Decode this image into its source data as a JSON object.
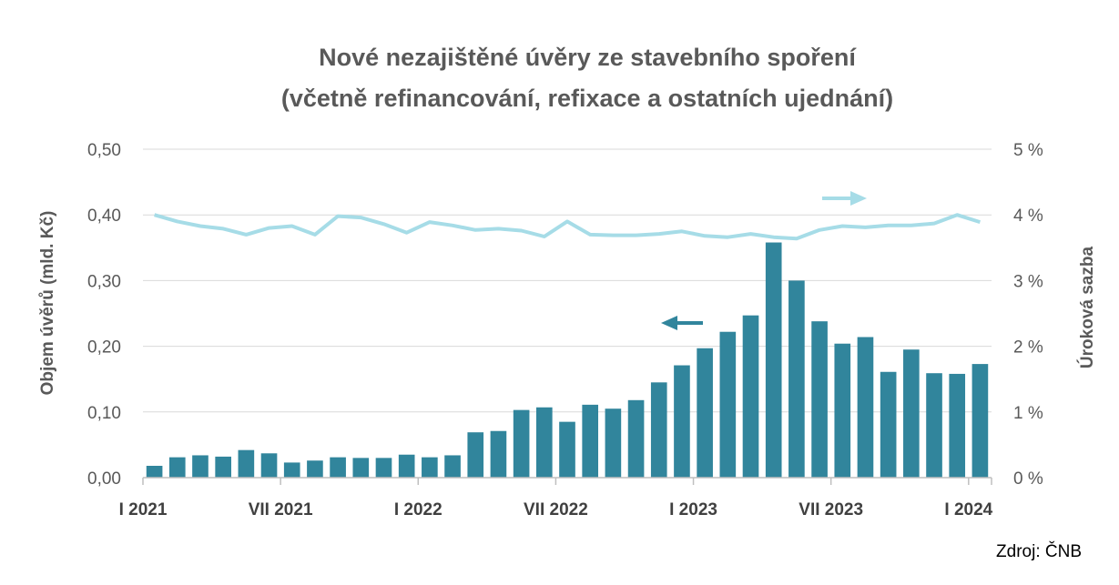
{
  "chart_data": {
    "type": "bar+line",
    "title": "Nové nezajištěné úvěry ze stavebního spoření",
    "subtitle": "(včetně refinancování, refixace a ostatních ujednání)",
    "ylabel_left": "Objem úvěrů (mld. Kč)",
    "ylabel_right": "Úroková sazba",
    "ylim_left": [
      0,
      0.5
    ],
    "ylim_right": [
      0,
      5
    ],
    "yticks_left": [
      "0,00",
      "0,10",
      "0,20",
      "0,30",
      "0,40",
      "0,50"
    ],
    "yticks_right": [
      "0 %",
      "1 %",
      "2 %",
      "3 %",
      "4 %",
      "5 %"
    ],
    "x_tick_labels": [
      "I 2021",
      "VII 2021",
      "I 2022",
      "VII 2022",
      "I 2023",
      "VII 2023",
      "I 2024"
    ],
    "x_tick_indices": [
      0,
      6,
      12,
      18,
      24,
      30,
      36
    ],
    "categories": [
      "I 2021",
      "II 2021",
      "III 2021",
      "IV 2021",
      "V 2021",
      "VI 2021",
      "VII 2021",
      "VIII 2021",
      "IX 2021",
      "X 2021",
      "XI 2021",
      "XII 2021",
      "I 2022",
      "II 2022",
      "III 2022",
      "IV 2022",
      "V 2022",
      "VI 2022",
      "VII 2022",
      "VIII 2022",
      "IX 2022",
      "X 2022",
      "XI 2022",
      "XII 2022",
      "I 2023",
      "II 2023",
      "III 2023",
      "IV 2023",
      "V 2023",
      "VI 2023",
      "VII 2023",
      "VIII 2023",
      "IX 2023",
      "X 2023",
      "XI 2023",
      "XII 2023",
      "I 2024"
    ],
    "series": [
      {
        "kind": "bar",
        "axis": "left",
        "color": "#31859C",
        "values": [
          0.018,
          0.031,
          0.034,
          0.032,
          0.042,
          0.037,
          0.023,
          0.026,
          0.031,
          0.03,
          0.03,
          0.035,
          0.031,
          0.034,
          0.069,
          0.071,
          0.103,
          0.107,
          0.085,
          0.111,
          0.105,
          0.118,
          0.145,
          0.171,
          0.197,
          0.222,
          0.247,
          0.358,
          0.3,
          0.238,
          0.204,
          0.214,
          0.161,
          0.195,
          0.159,
          0.158,
          0.173
        ]
      },
      {
        "kind": "line",
        "axis": "right",
        "color": "#A6DCE7",
        "values": [
          4.0,
          3.9,
          3.83,
          3.79,
          3.7,
          3.8,
          3.83,
          3.7,
          3.98,
          3.96,
          3.86,
          3.73,
          3.89,
          3.84,
          3.77,
          3.79,
          3.76,
          3.67,
          3.9,
          3.7,
          3.69,
          3.69,
          3.71,
          3.75,
          3.68,
          3.66,
          3.71,
          3.66,
          3.64,
          3.77,
          3.83,
          3.81,
          3.84,
          3.84,
          3.87,
          4.0,
          3.89
        ]
      }
    ],
    "annotations": [
      {
        "type": "arrow",
        "direction": "left",
        "refers_to": "left-axis",
        "color": "#31859C"
      },
      {
        "type": "arrow",
        "direction": "right",
        "refers_to": "right-axis",
        "color": "#A6DCE7"
      }
    ],
    "grid": true,
    "legend": "none"
  },
  "source_label": "Zdroj: ČNB"
}
